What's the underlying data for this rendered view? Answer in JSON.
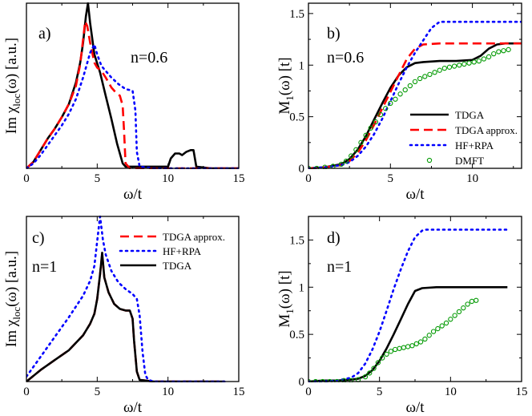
{
  "colors": {
    "tdga": "#000000",
    "tdga_approx": "#ff0000",
    "hf_rpa": "#0000ff",
    "dmft": "#009900"
  },
  "chart_data": [
    {
      "id": "a",
      "type": "line",
      "panel_label": "a)",
      "annotation": "n=0.6",
      "title": "",
      "ylabel": "Im χloc(ω) [a.u.]",
      "ylabel_main": "Im χ",
      "ylabel_sub": "loc",
      "ylabel_tail": "(ω) [a.u.]",
      "xlabel": "ω/t",
      "xlim": [
        0,
        15
      ],
      "ylim": [
        0,
        1.0
      ],
      "xticks": [
        0,
        5,
        10,
        15
      ],
      "yticks": [],
      "legend": null,
      "series": [
        {
          "name": "TDGA",
          "color_key": "tdga",
          "style": "solid",
          "x": [
            0,
            0.5,
            1,
            1.5,
            2,
            2.5,
            3,
            3.5,
            3.8,
            4.0,
            4.2,
            4.35,
            4.5,
            4.8,
            5.2,
            5.6,
            6.0,
            6.4,
            6.8,
            7.0,
            7.5,
            8,
            9,
            10,
            10.2,
            10.5,
            10.8,
            11.0,
            11.3,
            11.6,
            11.8,
            12.0,
            13,
            15
          ],
          "y": [
            0,
            0.04,
            0.11,
            0.18,
            0.24,
            0.31,
            0.39,
            0.52,
            0.64,
            0.76,
            0.92,
            1.0,
            0.88,
            0.69,
            0.58,
            0.44,
            0.3,
            0.15,
            0.03,
            0.01,
            0.01,
            0.01,
            0.01,
            0.01,
            0.06,
            0.09,
            0.09,
            0.08,
            0.1,
            0.11,
            0.11,
            0.01,
            0.0,
            0.0
          ]
        },
        {
          "name": "TDGA approx.",
          "color_key": "tdga_approx",
          "style": "dash",
          "x": [
            0,
            0.5,
            1,
            1.5,
            2,
            2.5,
            3,
            3.5,
            3.8,
            4.0,
            4.15,
            4.3,
            4.5,
            4.8,
            5.0,
            5.3,
            5.6,
            6.0,
            6.3,
            6.6,
            6.8,
            6.9,
            7.0,
            7.3,
            8,
            10,
            15
          ],
          "y": [
            0,
            0.04,
            0.11,
            0.18,
            0.24,
            0.31,
            0.39,
            0.5,
            0.63,
            0.78,
            0.89,
            0.86,
            0.76,
            0.64,
            0.61,
            0.59,
            0.55,
            0.49,
            0.46,
            0.44,
            0.38,
            0.22,
            0.03,
            0.0,
            0.0,
            0.0,
            0.0
          ]
        },
        {
          "name": "HF+RPA",
          "color_key": "hf_rpa",
          "style": "dot",
          "x": [
            0,
            0.5,
            1,
            1.5,
            2,
            2.5,
            3,
            3.5,
            4.0,
            4.5,
            4.8,
            5.0,
            5.3,
            5.6,
            6.0,
            6.5,
            7.0,
            7.5,
            7.7,
            7.8,
            8.0,
            9,
            10,
            12,
            15
          ],
          "y": [
            0,
            0.03,
            0.08,
            0.14,
            0.2,
            0.26,
            0.33,
            0.42,
            0.55,
            0.7,
            0.75,
            0.69,
            0.62,
            0.59,
            0.55,
            0.51,
            0.48,
            0.47,
            0.35,
            0.1,
            0.01,
            0.0,
            0.0,
            0.0,
            0.0
          ]
        }
      ]
    },
    {
      "id": "b",
      "type": "line",
      "panel_label": "b)",
      "annotation": "n=0.6",
      "title": "",
      "ylabel": "M1(ω) [t]",
      "ylabel_main": "M",
      "ylabel_sub": "1",
      "ylabel_tail": "(ω) [t]",
      "xlabel": "ω/t",
      "xlim": [
        0,
        13
      ],
      "ylim": [
        0,
        1.6
      ],
      "xticks": [
        0,
        5,
        10
      ],
      "yticks": [
        0,
        0.5,
        1,
        1.5
      ],
      "ytick_labels": [
        "0",
        "0.5",
        "1",
        "1.5"
      ],
      "legend": {
        "placement": "center-right",
        "entries": [
          {
            "name": "TDGA",
            "color_key": "tdga",
            "style": "solid"
          },
          {
            "name": "TDGA approx.",
            "color_key": "tdga_approx",
            "style": "dash"
          },
          {
            "name": "HF+RPA",
            "color_key": "hf_rpa",
            "style": "dot"
          },
          {
            "name": "DMFT",
            "color_key": "dmft",
            "style": "circle"
          }
        ]
      },
      "series": [
        {
          "name": "TDGA",
          "color_key": "tdga",
          "style": "solid",
          "x": [
            0,
            1,
            2,
            2.5,
            3,
            3.5,
            4,
            4.5,
            5,
            5.5,
            6,
            6.5,
            7,
            8,
            9,
            10,
            10.5,
            11,
            11.5,
            12,
            13
          ],
          "y": [
            0,
            0.01,
            0.04,
            0.09,
            0.18,
            0.31,
            0.47,
            0.63,
            0.78,
            0.9,
            0.98,
            1.02,
            1.03,
            1.04,
            1.04,
            1.05,
            1.09,
            1.16,
            1.2,
            1.21,
            1.21
          ]
        },
        {
          "name": "TDGA approx.",
          "color_key": "tdga_approx",
          "style": "dash",
          "x": [
            0,
            1,
            2,
            2.5,
            3,
            3.5,
            4,
            4.5,
            5,
            5.5,
            6,
            6.5,
            7,
            8,
            10,
            12,
            13
          ],
          "y": [
            0,
            0.01,
            0.03,
            0.07,
            0.15,
            0.27,
            0.42,
            0.58,
            0.74,
            0.9,
            1.06,
            1.16,
            1.2,
            1.21,
            1.21,
            1.21,
            1.21
          ]
        },
        {
          "name": "HF+RPA",
          "color_key": "hf_rpa",
          "style": "dot",
          "x": [
            0,
            1,
            2,
            2.5,
            3,
            3.5,
            4,
            4.5,
            5,
            5.5,
            6,
            6.5,
            7,
            7.5,
            8,
            9,
            10,
            11,
            12,
            13
          ],
          "y": [
            0,
            0.01,
            0.03,
            0.06,
            0.12,
            0.21,
            0.33,
            0.48,
            0.65,
            0.82,
            0.98,
            1.12,
            1.24,
            1.36,
            1.42,
            1.42,
            1.42,
            1.42,
            1.42,
            1.42
          ]
        },
        {
          "name": "DMFT",
          "color_key": "dmft",
          "style": "circle",
          "x": [
            0,
            0.5,
            1,
            1.5,
            2,
            2.3,
            2.6,
            2.9,
            3.2,
            3.5,
            3.8,
            4.1,
            4.4,
            4.7,
            5.0,
            5.3,
            5.6,
            5.9,
            6.2,
            6.5,
            6.8,
            7.1,
            7.4,
            7.7,
            8.0,
            8.3,
            8.6,
            8.9,
            9.2,
            9.5,
            9.8,
            10.1,
            10.4,
            10.7,
            11.0,
            11.3,
            11.6,
            11.9,
            12.2
          ],
          "y": [
            0,
            0.0,
            0.01,
            0.02,
            0.04,
            0.07,
            0.12,
            0.18,
            0.25,
            0.32,
            0.39,
            0.45,
            0.52,
            0.58,
            0.63,
            0.67,
            0.72,
            0.76,
            0.8,
            0.84,
            0.87,
            0.89,
            0.91,
            0.93,
            0.95,
            0.97,
            0.98,
            0.99,
            1.0,
            1.01,
            1.02,
            1.03,
            1.04,
            1.06,
            1.08,
            1.11,
            1.13,
            1.14,
            1.15
          ]
        }
      ]
    },
    {
      "id": "c",
      "type": "line",
      "panel_label": "c)",
      "annotation": "n=1",
      "title": "",
      "ylabel": "Im χloc(ω) [a.u.]",
      "ylabel_main": "Im χ",
      "ylabel_sub": "loc",
      "ylabel_tail": "(ω) [a.u.]",
      "xlabel": "ω/t",
      "xlim": [
        0,
        15
      ],
      "ylim": [
        0,
        1.0
      ],
      "xticks": [
        0,
        5,
        10,
        15
      ],
      "yticks": [],
      "legend": {
        "placement": "top-right",
        "entries": [
          {
            "name": "TDGA approx.",
            "color_key": "tdga_approx",
            "style": "dash"
          },
          {
            "name": "HF+RPA",
            "color_key": "hf_rpa",
            "style": "dot"
          },
          {
            "name": "TDGA",
            "color_key": "tdga",
            "style": "solid"
          }
        ]
      },
      "series": [
        {
          "name": "TDGA approx.",
          "color_key": "tdga_approx",
          "style": "dash",
          "x": [
            0,
            1,
            2,
            3,
            4,
            4.5,
            4.8,
            5.0,
            5.2,
            5.35,
            5.5,
            5.8,
            6.2,
            6.6,
            7.0,
            7.3,
            7.5,
            7.6,
            7.8,
            8.0,
            9,
            10,
            12,
            14
          ],
          "y": [
            0,
            0.07,
            0.13,
            0.19,
            0.28,
            0.35,
            0.41,
            0.5,
            0.65,
            0.77,
            0.63,
            0.54,
            0.47,
            0.44,
            0.43,
            0.43,
            0.38,
            0.25,
            0.06,
            0.01,
            0.0,
            0.0,
            0.0,
            0.0
          ]
        },
        {
          "name": "TDGA",
          "color_key": "tdga",
          "style": "solid",
          "x": [
            0,
            1,
            2,
            3,
            4,
            4.5,
            4.8,
            5.0,
            5.2,
            5.35,
            5.5,
            5.8,
            6.2,
            6.6,
            7.0,
            7.3,
            7.5,
            7.6,
            7.8,
            8.0,
            9,
            10,
            12,
            14
          ],
          "y": [
            0,
            0.07,
            0.13,
            0.19,
            0.28,
            0.35,
            0.41,
            0.5,
            0.65,
            0.78,
            0.63,
            0.54,
            0.47,
            0.44,
            0.43,
            0.43,
            0.38,
            0.25,
            0.06,
            0.01,
            0.0,
            0.0,
            0.0,
            0.0
          ]
        },
        {
          "name": "HF+RPA",
          "color_key": "hf_rpa",
          "style": "dot",
          "x": [
            0,
            1,
            2,
            3,
            4,
            4.5,
            4.8,
            5.0,
            5.2,
            5.4,
            5.6,
            6.0,
            6.5,
            7.0,
            7.5,
            7.8,
            8.0,
            8.2,
            8.4,
            8.6,
            9,
            10,
            12,
            14
          ],
          "y": [
            0.03,
            0.15,
            0.27,
            0.39,
            0.52,
            0.61,
            0.7,
            0.85,
            1.0,
            0.86,
            0.77,
            0.67,
            0.6,
            0.56,
            0.53,
            0.5,
            0.4,
            0.18,
            0.04,
            0.01,
            0.0,
            0.0,
            0.0,
            0.0
          ]
        }
      ]
    },
    {
      "id": "d",
      "type": "line",
      "panel_label": "d)",
      "annotation": "n=1",
      "title": "",
      "ylabel": "M1(ω) [t]",
      "ylabel_main": "M",
      "ylabel_sub": "1",
      "ylabel_tail": "(ω) [t]",
      "xlabel": "ω/t",
      "xlim": [
        0,
        15
      ],
      "ylim": [
        0,
        1.75
      ],
      "xticks": [
        0,
        5,
        10,
        15
      ],
      "yticks": [
        0,
        0.5,
        1,
        1.5
      ],
      "ytick_labels": [
        "0",
        "0.5",
        "1",
        "1.5"
      ],
      "legend": null,
      "series": [
        {
          "name": "TDGA",
          "color_key": "tdga",
          "style": "solid",
          "x": [
            0,
            1,
            2,
            3,
            3.5,
            4,
            4.5,
            5,
            5.5,
            6,
            6.5,
            7,
            7.5,
            8,
            9,
            10,
            12,
            14
          ],
          "y": [
            0,
            0.01,
            0.01,
            0.02,
            0.03,
            0.06,
            0.12,
            0.22,
            0.35,
            0.5,
            0.66,
            0.82,
            0.96,
            0.99,
            1.0,
            1.0,
            1.0,
            1.0
          ]
        },
        {
          "name": "HF+RPA",
          "color_key": "hf_rpa",
          "style": "dot",
          "x": [
            0,
            1,
            2,
            3,
            3.5,
            4,
            4.5,
            5,
            5.5,
            6,
            6.5,
            7,
            7.5,
            8,
            8.3,
            9,
            10,
            12,
            14
          ],
          "y": [
            0,
            0.0,
            0.01,
            0.04,
            0.09,
            0.19,
            0.34,
            0.53,
            0.75,
            0.98,
            1.19,
            1.38,
            1.53,
            1.6,
            1.61,
            1.61,
            1.61,
            1.61,
            1.61
          ]
        },
        {
          "name": "DMFT",
          "color_key": "dmft",
          "style": "circle",
          "x": [
            0,
            0.5,
            1,
            1.5,
            2,
            2.5,
            3,
            3.5,
            4,
            4.3,
            4.6,
            4.9,
            5.2,
            5.5,
            5.8,
            6.1,
            6.4,
            6.7,
            7.0,
            7.3,
            7.6,
            7.9,
            8.2,
            8.5,
            8.8,
            9.1,
            9.4,
            9.7,
            10.0,
            10.3,
            10.6,
            10.9,
            11.2,
            11.5,
            11.8
          ],
          "y": [
            0,
            0,
            0,
            0,
            0,
            0.01,
            0.01,
            0.02,
            0.05,
            0.09,
            0.14,
            0.2,
            0.25,
            0.29,
            0.32,
            0.34,
            0.35,
            0.36,
            0.37,
            0.38,
            0.4,
            0.42,
            0.45,
            0.49,
            0.53,
            0.56,
            0.59,
            0.62,
            0.66,
            0.7,
            0.74,
            0.78,
            0.82,
            0.85,
            0.86
          ]
        }
      ]
    }
  ]
}
